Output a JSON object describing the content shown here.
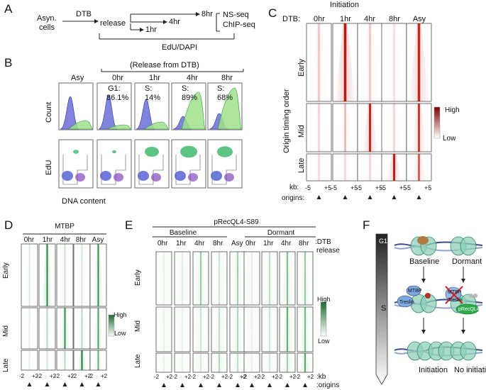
{
  "panelA": {
    "label": "A",
    "cells_line1": "Asyn.",
    "cells_line2": "cells",
    "dtb": "DTB",
    "release": "release",
    "t1": "1hr",
    "t4": "4hr",
    "t8": "8hr",
    "nsseq": "NS-seq",
    "chipseq": "ChIP-seq",
    "edu_dapi": "EdU/DAPI"
  },
  "panelB": {
    "label": "B",
    "release_title": "(Release from DTB)",
    "asy": "Asy",
    "times": [
      "0hr",
      "1hr",
      "4hr",
      "8hr"
    ],
    "phase_labels": [
      "G1:",
      "S:",
      "S:",
      "S:"
    ],
    "phase_values": [
      "86.1%",
      "14%",
      "89%",
      "68%"
    ],
    "count_axis": "Count",
    "edu_axis": "EdU",
    "dna_axis": "DNA content"
  },
  "panelC": {
    "label": "C",
    "title": "Initiation",
    "dtb": "DTB:",
    "columns": [
      "0hr",
      "1hr",
      "4hr",
      "8hr",
      "Asy"
    ],
    "rows": [
      "Early",
      "Mid",
      "Late"
    ],
    "y_axis": "Origin timing order",
    "legend_high": "High",
    "legend_low": "Low",
    "kb": "kb:",
    "origins": "origins:",
    "tick_minus": "-5",
    "tick_plus": "+5",
    "color_high": "#8b0000",
    "color_low": "#ffffff"
  },
  "panelD": {
    "label": "D",
    "title": "MTBP",
    "columns": [
      "0hr",
      "1hr",
      "4hr",
      "8hr",
      "Asy"
    ],
    "rows": [
      "Early",
      "Mid",
      "Late"
    ],
    "legend_high": "High",
    "legend_low": "Low",
    "tick_minus": "-2",
    "tick_plus": "+2",
    "color_high": "#1e7d33"
  },
  "panelE": {
    "label": "E",
    "title": "pRecQL4-S89",
    "baseline": "Baseline",
    "dormant": "Dormant",
    "columns": [
      "0hr",
      "1hr",
      "4hr",
      "8hr",
      "Asy"
    ],
    "dtb_tag": ":DTB",
    "release_tag": "release",
    "rows": [
      "Early",
      "Mid",
      "Late"
    ],
    "legend_high": "High",
    "legend_low": "Low",
    "kb_tag": ":kb",
    "origins_tag": ":origins",
    "tick_minus": "-2",
    "tick_plus": "+2"
  },
  "panelF": {
    "label": "F",
    "g1": "G1",
    "s": "S",
    "baseline": "Baseline",
    "dormant": "Dormant",
    "mtbp": "MTBP",
    "treslin": "Treslin",
    "precql4": "pRecQL4",
    "initiation": "Initiation",
    "no_initiation": "No initiation"
  }
}
